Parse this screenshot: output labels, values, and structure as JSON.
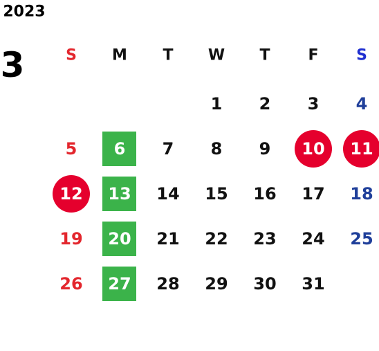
{
  "header": {
    "year": "2023",
    "month": "3"
  },
  "weekdays": [
    "S",
    "M",
    "T",
    "W",
    "T",
    "F",
    "S"
  ],
  "weeks": [
    [
      null,
      null,
      null,
      {
        "day": "1"
      },
      {
        "day": "2"
      },
      {
        "day": "3"
      },
      {
        "day": "4"
      }
    ],
    [
      {
        "day": "5"
      },
      {
        "day": "6",
        "mark": "square"
      },
      {
        "day": "7"
      },
      {
        "day": "8"
      },
      {
        "day": "9"
      },
      {
        "day": "10",
        "mark": "circle"
      },
      {
        "day": "11",
        "mark": "circle"
      }
    ],
    [
      {
        "day": "12",
        "mark": "circle"
      },
      {
        "day": "13",
        "mark": "square"
      },
      {
        "day": "14"
      },
      {
        "day": "15"
      },
      {
        "day": "16"
      },
      {
        "day": "17"
      },
      {
        "day": "18"
      }
    ],
    [
      {
        "day": "19"
      },
      {
        "day": "20",
        "mark": "square"
      },
      {
        "day": "21"
      },
      {
        "day": "22"
      },
      {
        "day": "23"
      },
      {
        "day": "24"
      },
      {
        "day": "25"
      }
    ],
    [
      {
        "day": "26"
      },
      {
        "day": "27",
        "mark": "square"
      },
      {
        "day": "28"
      },
      {
        "day": "29"
      },
      {
        "day": "30"
      },
      {
        "day": "31"
      },
      null
    ]
  ]
}
